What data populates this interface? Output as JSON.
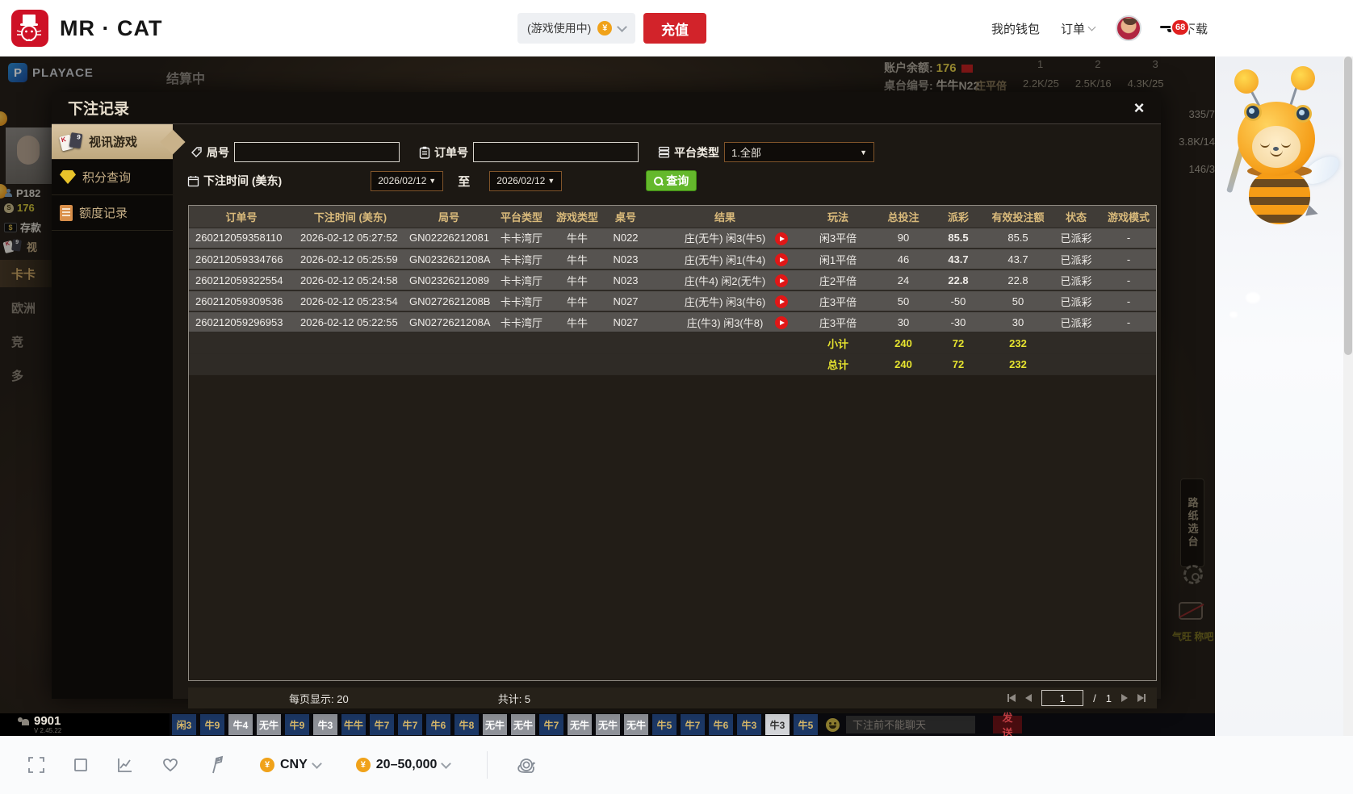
{
  "header": {
    "brand": "MR · CAT",
    "wallet_pill": {
      "label": "(游戏使用中)",
      "coin": "¥"
    },
    "topup": "充值",
    "my_wallet": "我的钱包",
    "orders": "订单",
    "download": "下载",
    "notice_count": "68"
  },
  "lobby": {
    "playace": "PLAYACE",
    "settling": "结算中",
    "balance_label": "账户余额:",
    "balance_value": "176",
    "table_label": "桌台编号:",
    "table_value": "牛牛N22",
    "col_nums": [
      "1",
      "2",
      "3"
    ],
    "banker_label": "庄平倍",
    "banker_values": [
      "2.2K/25",
      "2.5K/16",
      "4.3K/25"
    ],
    "side_values": [
      "335/7",
      "3.8K/14",
      "146/3"
    ],
    "user_id": "P182",
    "user_balance": "176",
    "deposit": "存款",
    "video_label": "视",
    "left_nav": [
      "卡卡",
      "欧洲",
      "竞",
      "多"
    ],
    "road_tab": "路纸选台",
    "dim_text": "气旺 称吧",
    "online_count": "9901",
    "version": "V 2.45.22",
    "roadmap": [
      {
        "t": "闲3",
        "c": "navy"
      },
      {
        "t": "牛9",
        "c": "navy"
      },
      {
        "t": "牛4",
        "c": "gray"
      },
      {
        "t": "无牛",
        "c": "gray"
      },
      {
        "t": "牛9",
        "c": "navy"
      },
      {
        "t": "牛3",
        "c": "gray"
      },
      {
        "t": "牛牛",
        "c": "navy"
      },
      {
        "t": "牛7",
        "c": "navy"
      },
      {
        "t": "牛7",
        "c": "navy"
      },
      {
        "t": "牛6",
        "c": "navy"
      },
      {
        "t": "牛8",
        "c": "navy"
      },
      {
        "t": "无牛",
        "c": "gray"
      },
      {
        "t": "无牛",
        "c": "gray"
      },
      {
        "t": "牛7",
        "c": "navy"
      },
      {
        "t": "无牛",
        "c": "gray"
      },
      {
        "t": "无牛",
        "c": "gray"
      },
      {
        "t": "无牛",
        "c": "gray"
      },
      {
        "t": "牛5",
        "c": "navy"
      },
      {
        "t": "牛7",
        "c": "navy"
      },
      {
        "t": "牛6",
        "c": "navy"
      },
      {
        "t": "牛3",
        "c": "navy"
      },
      {
        "t": "牛3",
        "c": "light"
      },
      {
        "t": "牛5",
        "c": "navy"
      }
    ],
    "chat_placeholder": "下注前不能聊天",
    "send": "发送"
  },
  "modal": {
    "title": "下注记录",
    "close": "×",
    "sidebar": [
      {
        "label": "视讯游戏",
        "active": true
      },
      {
        "label": "积分查询",
        "active": false
      },
      {
        "label": "额度记录",
        "active": false
      }
    ],
    "filters": {
      "round_label": "局号",
      "order_label": "订单号",
      "platform_label": "平台类型",
      "platform_value": "1.全部",
      "time_label": "下注时间 (美东)",
      "date_from": "2026/02/12",
      "to_label": "至",
      "date_to": "2026/02/12",
      "search_label": "查询"
    },
    "table": {
      "headers": [
        "订单号",
        "下注时间 (美东)",
        "局号",
        "平台类型",
        "游戏类型",
        "桌号",
        "结果",
        "玩法",
        "总投注",
        "派彩",
        "有效投注额",
        "状态",
        "游戏模式"
      ],
      "rows": [
        {
          "cells": [
            "260212059358110",
            "2026-02-12 05:27:52",
            "GN02226212081",
            "卡卡湾厅",
            "牛牛",
            "N022",
            "庄(无牛) 闲3(牛5)",
            "闲3平倍",
            "90",
            "85.5",
            "85.5",
            "已派彩",
            "-"
          ],
          "trend": "win"
        },
        {
          "cells": [
            "260212059334766",
            "2026-02-12 05:25:59",
            "GN0232621208A",
            "卡卡湾厅",
            "牛牛",
            "N023",
            "庄(无牛) 闲1(牛4)",
            "闲1平倍",
            "46",
            "43.7",
            "43.7",
            "已派彩",
            "-"
          ],
          "trend": "win"
        },
        {
          "cells": [
            "260212059322554",
            "2026-02-12 05:24:58",
            "GN02326212089",
            "卡卡湾厅",
            "牛牛",
            "N023",
            "庄(牛4) 闲2(无牛)",
            "庄2平倍",
            "24",
            "22.8",
            "22.8",
            "已派彩",
            "-"
          ],
          "trend": "win"
        },
        {
          "cells": [
            "260212059309536",
            "2026-02-12 05:23:54",
            "GN0272621208B",
            "卡卡湾厅",
            "牛牛",
            "N027",
            "庄(无牛) 闲3(牛6)",
            "庄3平倍",
            "50",
            "-50",
            "50",
            "已派彩",
            "-"
          ],
          "trend": "loss"
        },
        {
          "cells": [
            "260212059296953",
            "2026-02-12 05:22:55",
            "GN0272621208A",
            "卡卡湾厅",
            "牛牛",
            "N027",
            "庄(牛3) 闲3(牛8)",
            "庄3平倍",
            "30",
            "-30",
            "30",
            "已派彩",
            "-"
          ],
          "trend": "loss"
        }
      ],
      "subtotal": {
        "label": "小计",
        "total_bet": "240",
        "payout": "72",
        "valid": "232"
      },
      "grand_total": {
        "label": "总计",
        "total_bet": "240",
        "payout": "72",
        "valid": "232"
      }
    },
    "footer": {
      "page_size_label": "每页显示: 20",
      "total_label": "共计: 5",
      "page": "1",
      "separator": "/",
      "pages": "1"
    }
  },
  "toolbar": {
    "currency": "CNY",
    "currency_symbol": "¥",
    "bet_range": "20–50,000"
  }
}
